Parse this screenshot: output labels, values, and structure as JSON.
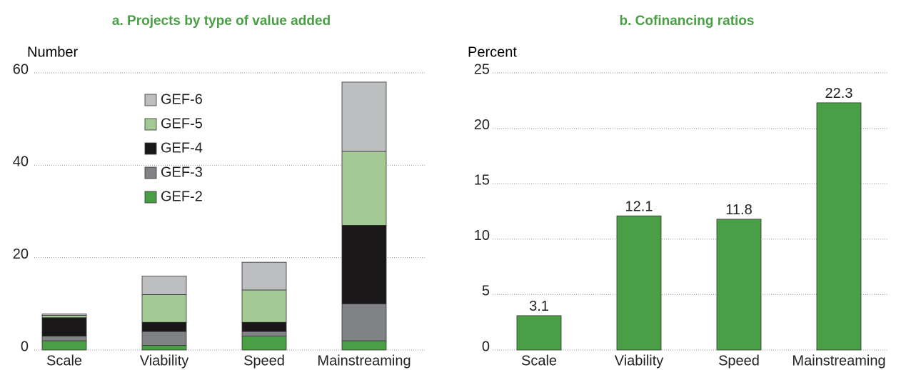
{
  "chart_data": [
    {
      "type": "stacked_bar",
      "title": "a. Projects by type of value added",
      "y_label": "Number",
      "categories": [
        "Scale",
        "Viability",
        "Speed",
        "Mainstreaming"
      ],
      "series": [
        {
          "name": "GEF-2",
          "color": "#4a9e45",
          "values": [
            2,
            1,
            3,
            2
          ]
        },
        {
          "name": "GEF-3",
          "color": "#808285",
          "values": [
            1,
            3,
            1,
            8
          ]
        },
        {
          "name": "GEF-4",
          "color": "#1a1718",
          "values": [
            4,
            2,
            2,
            17
          ]
        },
        {
          "name": "GEF-5",
          "color": "#a3c994",
          "values": [
            0.5,
            6,
            7,
            16
          ]
        },
        {
          "name": "GEF-6",
          "color": "#bcbec0",
          "values": [
            0.3,
            4,
            6,
            15
          ]
        }
      ],
      "ylim": [
        0,
        60
      ],
      "yticks": [
        0,
        20,
        40,
        60
      ],
      "grid": true,
      "legend": "upper-left"
    },
    {
      "type": "bar",
      "title": "b. Cofinancing ratios",
      "y_label": "Percent",
      "categories": [
        "Scale",
        "Viability",
        "Speed",
        "Mainstreaming"
      ],
      "values": [
        3.1,
        12.1,
        11.8,
        22.3
      ],
      "color": "#4a9e45",
      "ylim": [
        0,
        25
      ],
      "yticks": [
        0,
        5,
        10,
        15,
        20,
        25
      ],
      "grid": true
    }
  ]
}
